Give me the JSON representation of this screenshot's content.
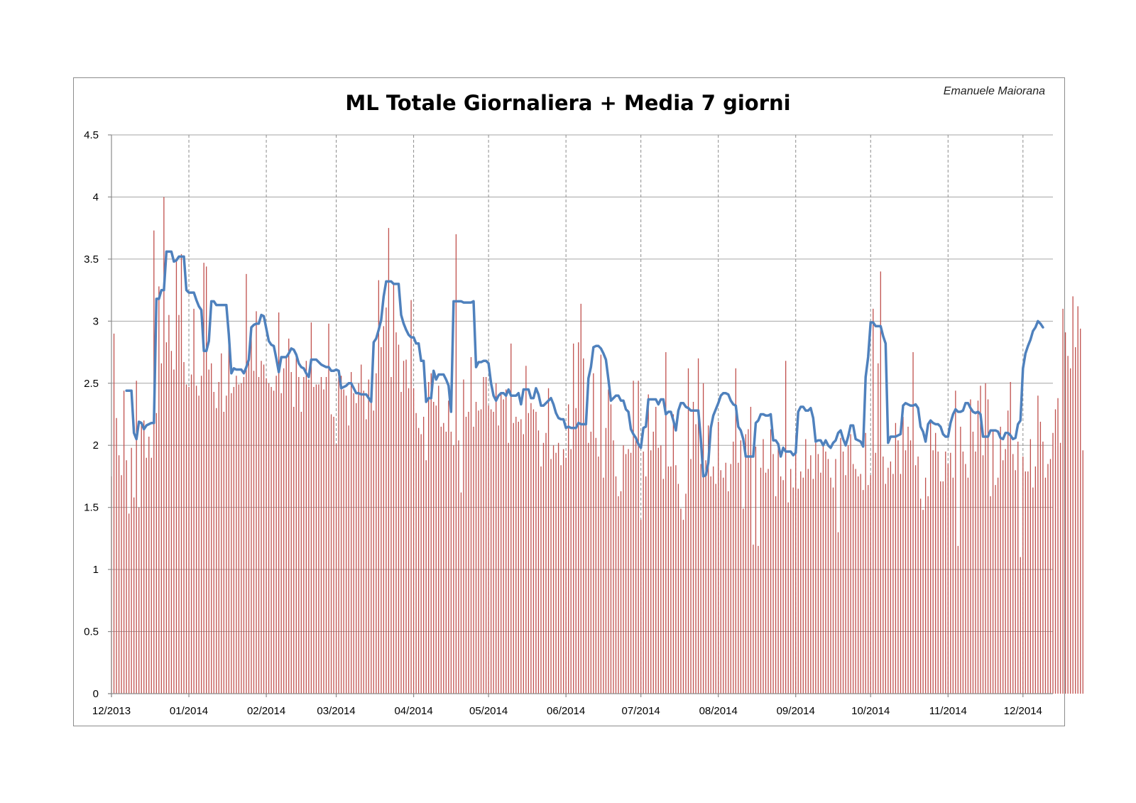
{
  "chart_data": {
    "type": "bar",
    "title": "ML Totale Giornaliera + Media 7 giorni",
    "annotation": "Emanuele Maiorana",
    "xlabel": "",
    "ylabel": "",
    "ylim": [
      0,
      4.5
    ],
    "y_ticks": [
      "0",
      "0.5",
      "1",
      "1.5",
      "2",
      "2.5",
      "3",
      "3.5",
      "4",
      "4.5"
    ],
    "x_tick_labels": [
      "12/2013",
      "01/2014",
      "02/2014",
      "03/2014",
      "04/2014",
      "05/2014",
      "06/2014",
      "07/2014",
      "08/2014",
      "09/2014",
      "10/2014",
      "11/2014",
      "12/2014"
    ],
    "x_range": [
      "2013-12-01",
      "2014-12-13"
    ],
    "grid": {
      "horizontal": true,
      "vertical_dashed_monthly": true
    },
    "legend": "none",
    "colors": {
      "bars": "#c0504d",
      "line": "#4f81bd",
      "grid": "#a6a6a6"
    },
    "series": [
      {
        "type": "bar",
        "start_date": "2013-12-01",
        "values": [
          1.75,
          2.9,
          2.22,
          1.92,
          1.76,
          2.44,
          1.88,
          1.45,
          1.98,
          1.58,
          2.52,
          1.5,
          2.18,
          2.2,
          1.9,
          2.07,
          1.9,
          3.73,
          2.26,
          3.28,
          2.66,
          4.0,
          2.83,
          3.05,
          2.76,
          2.61,
          3.48,
          3.05,
          3.54,
          2.67,
          2.49,
          2.47,
          2.57,
          3.1,
          2.48,
          2.4,
          2.56,
          3.47,
          3.44,
          2.61,
          2.66,
          2.43,
          2.3,
          2.51,
          2.74,
          2.27,
          2.4,
          2.91,
          2.42,
          2.47,
          2.56,
          2.49,
          2.5,
          2.55,
          3.38,
          2.68,
          2.9,
          2.6,
          3.08,
          2.55,
          2.68,
          2.65,
          2.54,
          2.5,
          2.47,
          2.44,
          2.56,
          3.07,
          2.42,
          2.62,
          2.72,
          2.86,
          2.59,
          2.31,
          2.74,
          2.55,
          2.27,
          2.55,
          2.68,
          2.53,
          2.99,
          2.47,
          2.49,
          2.49,
          2.55,
          2.45,
          2.55,
          2.98,
          2.25,
          2.23,
          2.01,
          2.55,
          2.56,
          2.45,
          2.4,
          2.16,
          2.59,
          2.42,
          2.34,
          2.5,
          2.65,
          2.44,
          2.21,
          2.53,
          2.42,
          2.28,
          2.58,
          3.33,
          2.79,
          2.96,
          3.11,
          3.75,
          2.55,
          3.3,
          2.91,
          2.81,
          2.43,
          2.68,
          2.69,
          2.46,
          3.17,
          2.46,
          2.26,
          2.14,
          2.09,
          2.23,
          1.88,
          2.51,
          2.58,
          2.35,
          2.32,
          2.48,
          2.15,
          2.18,
          2.11,
          2.36,
          2.11,
          2.0,
          3.7,
          2.04,
          1.62,
          2.53,
          2.23,
          2.27,
          2.71,
          2.15,
          2.35,
          2.28,
          2.29,
          2.55,
          2.55,
          2.32,
          2.29,
          2.27,
          2.5,
          2.16,
          2.41,
          2.37,
          2.45,
          2.02,
          2.82,
          2.18,
          2.23,
          2.19,
          2.21,
          2.09,
          2.64,
          2.26,
          2.34,
          2.29,
          2.27,
          2.12,
          1.83,
          2.02,
          2.1,
          2.46,
          1.89,
          2.0,
          1.94,
          2.02,
          1.84,
          1.97,
          1.9,
          2.33,
          1.97,
          2.82,
          2.3,
          2.83,
          3.14,
          2.7,
          2.19,
          2.02,
          2.11,
          2.58,
          2.06,
          1.91,
          2.73,
          1.74,
          2.14,
          2.45,
          2.33,
          2.04,
          1.75,
          1.59,
          1.63,
          2.0,
          1.93,
          1.97,
          1.94,
          2.52,
          2.05,
          2.52,
          1.4,
          1.95,
          1.75,
          2.41,
          1.96,
          2.11,
          2.31,
          1.98,
          2.0,
          1.73,
          2.75,
          1.83,
          1.83,
          2.25,
          1.84,
          1.69,
          1.49,
          1.4,
          1.61,
          2.62,
          1.89,
          2.35,
          2.17,
          2.7,
          1.85,
          2.5,
          1.88,
          2.16,
          1.75,
          1.83,
          1.69,
          2.19,
          1.8,
          1.74,
          1.86,
          1.63,
          1.85,
          2.03,
          2.62,
          1.86,
          2.04,
          1.49,
          2.09,
          2.13,
          2.31,
          1.2,
          1.99,
          1.19,
          1.82,
          2.05,
          1.78,
          1.81,
          2.13,
          1.93,
          1.59,
          2.0,
          1.75,
          1.72,
          2.68,
          1.54,
          1.81,
          1.66,
          2.08,
          1.65,
          1.79,
          1.74,
          2.05,
          1.81,
          1.92,
          1.73,
          2.02,
          1.93,
          1.78,
          2.01,
          1.95,
          1.89,
          1.74,
          1.66,
          1.89,
          1.3,
          2.06,
          1.95,
          1.76,
          2.0,
          2.09,
          1.85,
          1.81,
          1.75,
          1.77,
          1.64,
          2.1,
          1.68,
          1.76,
          3.1,
          1.94,
          2.66,
          3.4,
          1.91,
          1.69,
          1.82,
          1.87,
          1.77,
          2.18,
          2.04,
          1.77,
          2.23,
          1.96,
          2.15,
          2.04,
          2.75,
          1.84,
          1.91,
          1.57,
          1.48,
          1.74,
          1.59,
          2.21,
          1.96,
          2.1,
          1.95,
          1.71,
          1.71,
          1.95,
          1.85,
          1.94,
          1.74,
          2.44,
          1.19,
          2.15,
          1.95,
          1.85,
          1.74,
          2.37,
          2.11,
          1.95,
          2.36,
          2.48,
          1.92,
          2.5,
          2.37,
          1.59,
          2.12,
          1.68,
          1.74,
          2.15,
          1.88,
          1.97,
          2.28,
          2.51,
          1.93,
          1.8,
          2.03,
          1.1,
          1.91,
          1.79,
          1.79,
          2.05,
          1.66,
          1.83,
          2.4,
          2.19,
          2.03,
          1.74,
          1.85,
          1.89,
          2.1,
          2.29,
          2.38,
          2.02,
          3.1,
          2.91,
          2.72,
          2.62,
          3.2,
          2.79,
          3.12,
          2.94,
          1.96
        ]
      },
      {
        "type": "line",
        "start_date": "2013-12-07",
        "values": [
          2.44,
          2.44,
          2.44,
          2.1,
          2.05,
          2.19,
          2.18,
          2.13,
          2.16,
          2.17,
          2.18,
          2.18,
          3.18,
          3.18,
          3.25,
          3.25,
          3.56,
          3.56,
          3.56,
          3.48,
          3.49,
          3.52,
          3.52,
          3.52,
          3.25,
          3.23,
          3.23,
          3.23,
          3.17,
          3.12,
          3.09,
          2.76,
          2.76,
          2.84,
          3.16,
          3.16,
          3.13,
          3.13,
          3.13,
          3.13,
          3.13,
          2.89,
          2.58,
          2.62,
          2.61,
          2.61,
          2.61,
          2.58,
          2.63,
          2.69,
          2.95,
          2.97,
          2.98,
          2.98,
          3.05,
          3.04,
          2.94,
          2.84,
          2.81,
          2.8,
          2.7,
          2.59,
          2.71,
          2.71,
          2.71,
          2.74,
          2.78,
          2.77,
          2.73,
          2.66,
          2.63,
          2.62,
          2.58,
          2.55,
          2.69,
          2.69,
          2.69,
          2.67,
          2.65,
          2.64,
          2.63,
          2.63,
          2.6,
          2.6,
          2.61,
          2.6,
          2.46,
          2.47,
          2.48,
          2.5,
          2.5,
          2.46,
          2.42,
          2.42,
          2.41,
          2.41,
          2.41,
          2.38,
          2.35,
          2.83,
          2.86,
          2.93,
          3.01,
          3.2,
          3.32,
          3.32,
          3.32,
          3.3,
          3.3,
          3.3,
          3.05,
          2.98,
          2.93,
          2.89,
          2.87,
          2.87,
          2.82,
          2.82,
          2.68,
          2.68,
          2.35,
          2.38,
          2.38,
          2.6,
          2.53,
          2.57,
          2.57,
          2.57,
          2.53,
          2.48,
          2.27,
          3.16,
          3.16,
          3.16,
          3.16,
          3.15,
          3.15,
          3.15,
          3.15,
          3.16,
          2.63,
          2.67,
          2.67,
          2.68,
          2.68,
          2.66,
          2.5,
          2.4,
          2.36,
          2.4,
          2.42,
          2.42,
          2.4,
          2.45,
          2.4,
          2.4,
          2.4,
          2.42,
          2.33,
          2.45,
          2.45,
          2.45,
          2.38,
          2.38,
          2.46,
          2.41,
          2.32,
          2.32,
          2.34,
          2.36,
          2.38,
          2.33,
          2.26,
          2.22,
          2.21,
          2.21,
          2.14,
          2.15,
          2.14,
          2.14,
          2.14,
          2.18,
          2.17,
          2.17,
          2.17,
          2.54,
          2.63,
          2.79,
          2.8,
          2.8,
          2.78,
          2.74,
          2.69,
          2.53,
          2.36,
          2.38,
          2.4,
          2.4,
          2.36,
          2.36,
          2.29,
          2.27,
          2.13,
          2.09,
          2.06,
          2.01,
          1.98,
          2.14,
          2.15,
          2.37,
          2.37,
          2.37,
          2.37,
          2.33,
          2.37,
          2.37,
          2.25,
          2.27,
          2.27,
          2.2,
          2.12,
          2.28,
          2.34,
          2.34,
          2.31,
          2.3,
          2.28,
          2.28,
          2.28,
          2.28,
          2.05,
          1.75,
          1.76,
          1.86,
          2.14,
          2.24,
          2.29,
          2.34,
          2.4,
          2.42,
          2.42,
          2.41,
          2.36,
          2.33,
          2.32,
          2.15,
          2.12,
          2.05,
          1.91,
          1.91,
          1.91,
          1.91,
          2.18,
          2.2,
          2.25,
          2.25,
          2.24,
          2.24,
          2.25,
          2.04,
          2.04,
          2.01,
          1.91,
          1.98,
          1.95,
          1.95,
          1.95,
          1.92,
          1.94,
          2.27,
          2.31,
          2.31,
          2.28,
          2.28,
          2.3,
          2.22,
          2.03,
          2.04,
          2.04,
          2.0,
          2.04,
          2.0,
          1.98,
          2.02,
          2.04,
          2.1,
          2.12,
          2.05,
          2.0,
          2.07,
          2.16,
          2.16,
          2.05,
          2.04,
          2.03,
          1.99,
          2.55,
          2.71,
          2.99,
          2.99,
          2.96,
          2.96,
          2.96,
          2.88,
          2.82,
          2.02,
          2.07,
          2.07,
          2.07,
          2.08,
          2.09,
          2.32,
          2.34,
          2.33,
          2.32,
          2.32,
          2.33,
          2.3,
          2.15,
          2.11,
          2.03,
          2.17,
          2.2,
          2.18,
          2.17,
          2.17,
          2.15,
          2.09,
          2.07,
          2.07,
          2.18,
          2.25,
          2.29,
          2.27,
          2.27,
          2.28,
          2.34,
          2.34,
          2.3,
          2.27,
          2.26,
          2.27,
          2.25,
          2.07,
          2.07,
          2.07,
          2.12,
          2.12,
          2.12,
          2.11,
          2.06,
          2.05,
          2.1,
          2.1,
          2.08,
          2.05,
          2.06,
          2.17,
          2.2,
          2.62,
          2.74,
          2.8,
          2.85,
          2.92,
          2.95,
          3.0,
          2.98,
          2.95
        ]
      }
    ]
  }
}
